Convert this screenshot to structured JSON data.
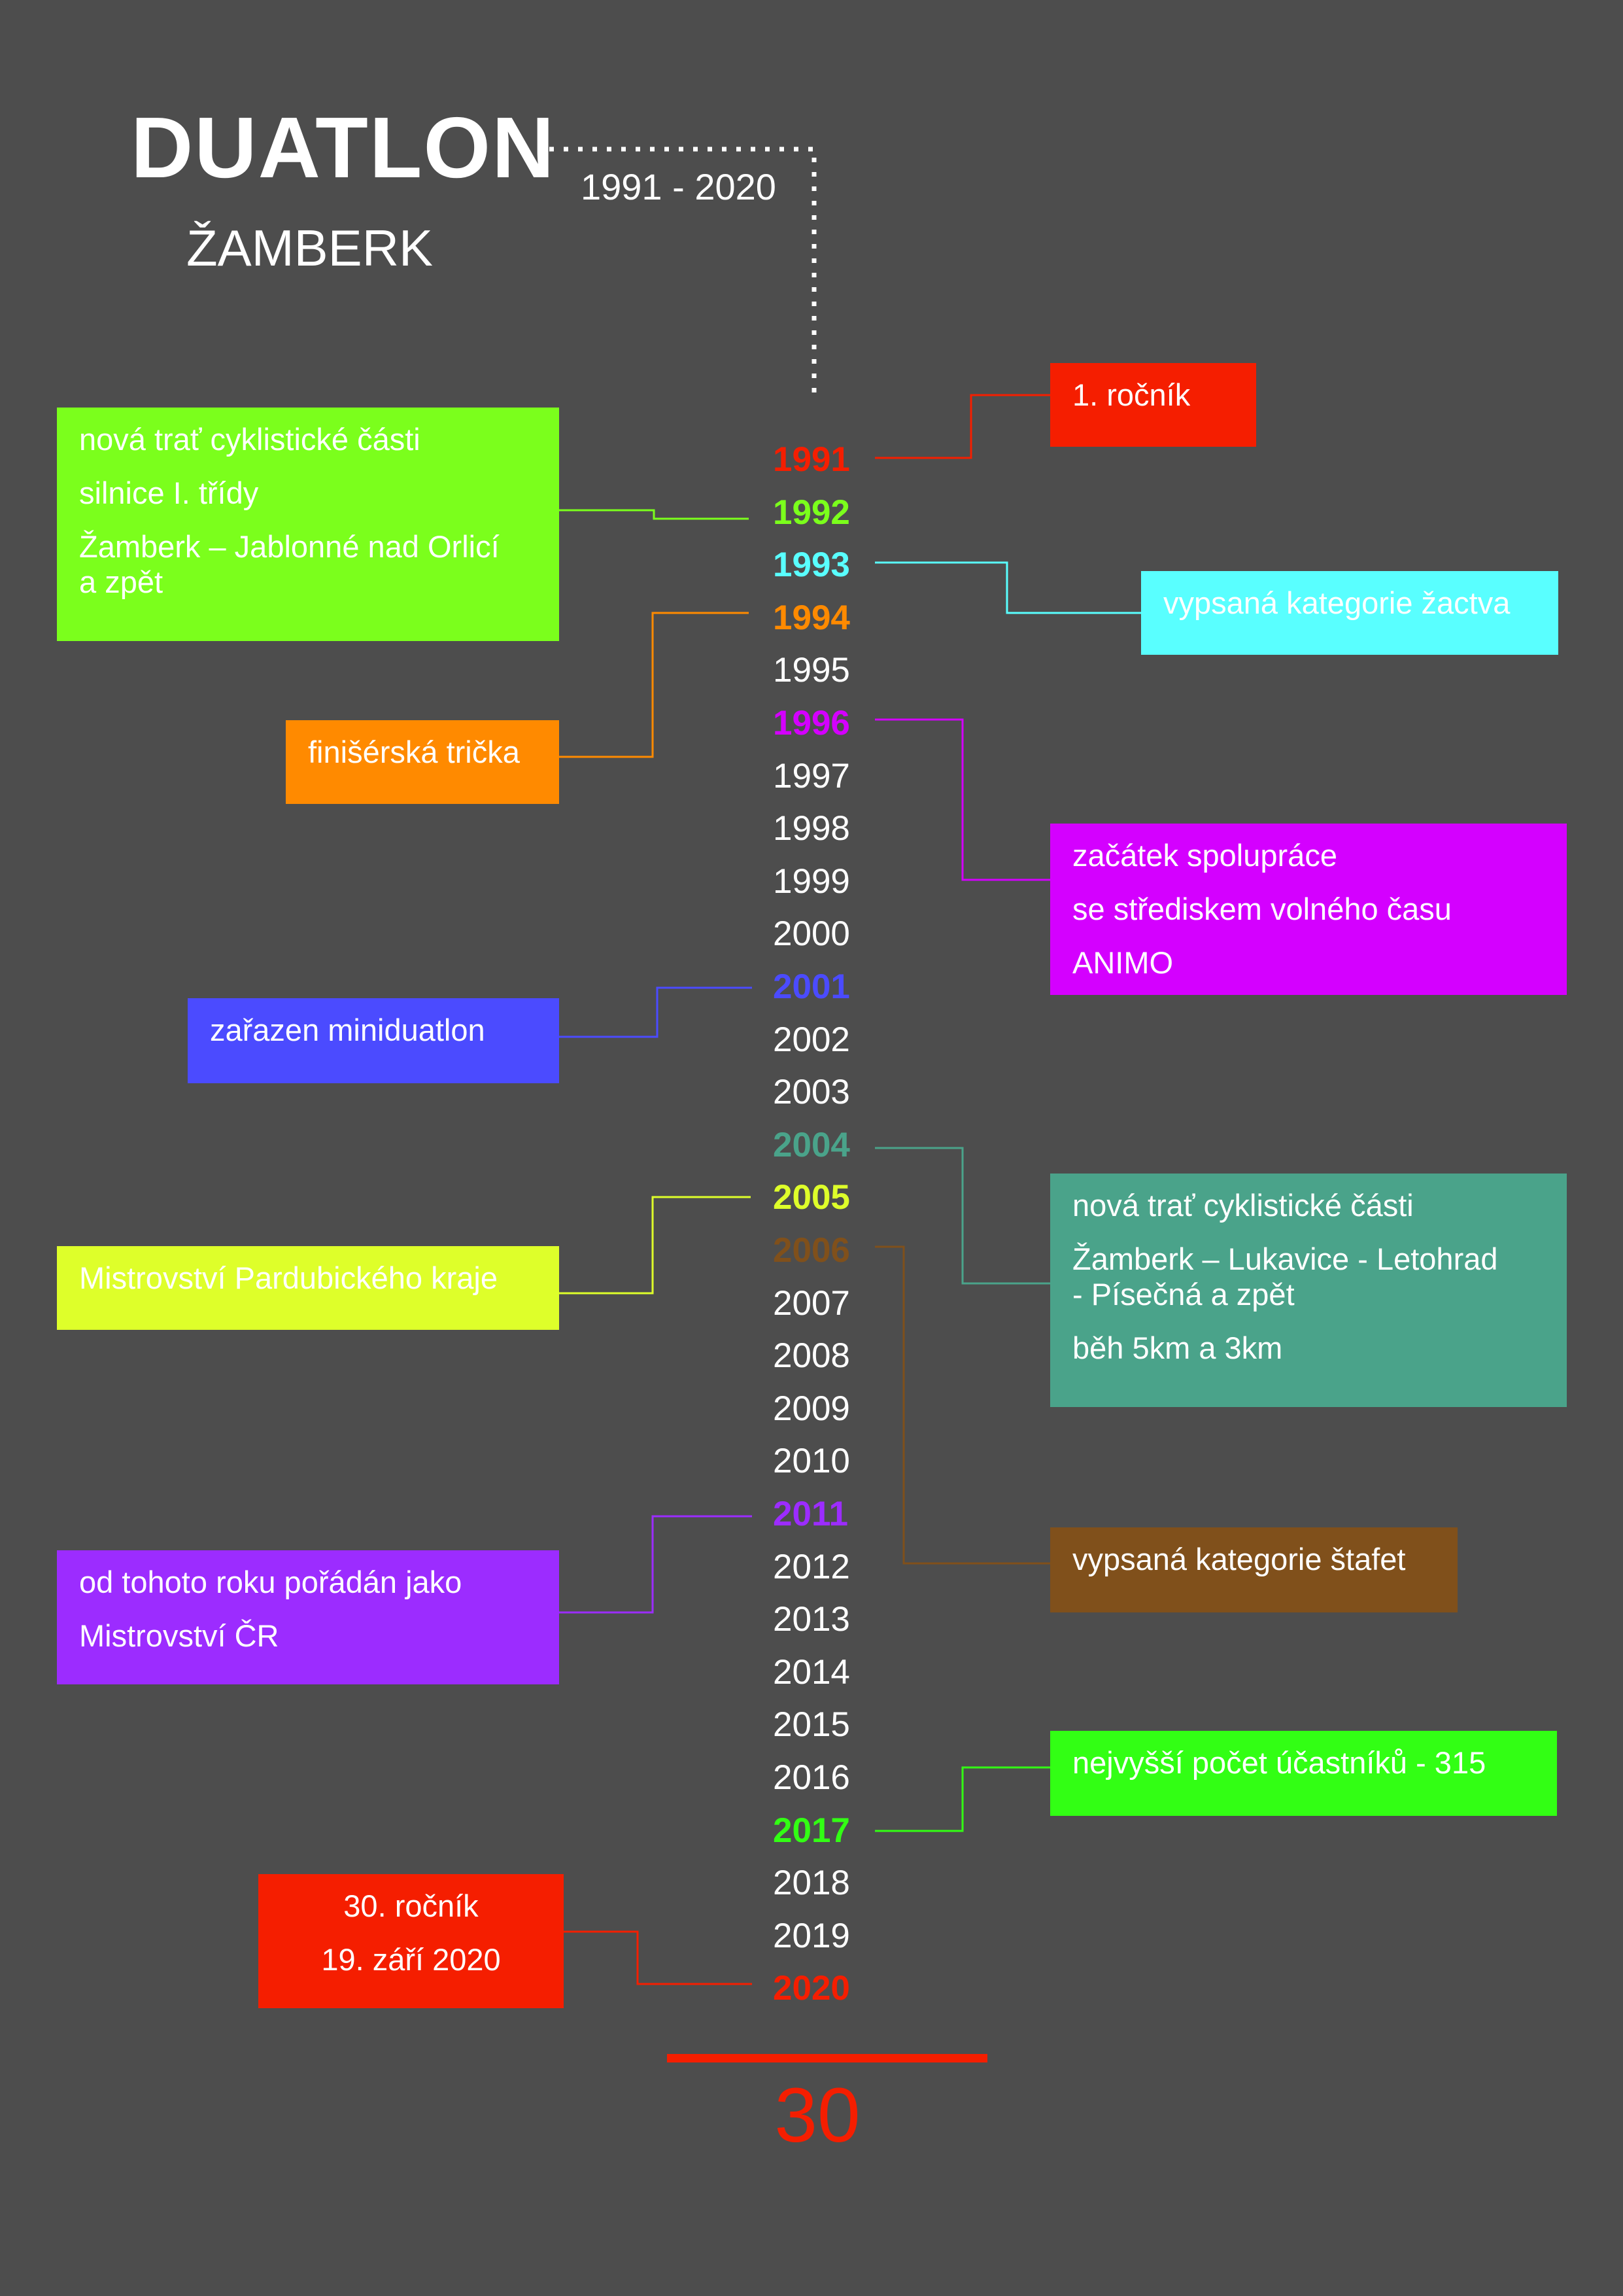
{
  "header": {
    "title": "DUATLON",
    "subtitle": "ŽAMBERK",
    "range": "1991 - 2020"
  },
  "timeline": {
    "years": [
      {
        "label": "1991",
        "color": "#f51e00",
        "highlight": true
      },
      {
        "label": "1992",
        "color": "#7bff1c",
        "highlight": true
      },
      {
        "label": "1993",
        "color": "#59ffff",
        "highlight": true
      },
      {
        "label": "1994",
        "color": "#ff8a00",
        "highlight": true
      },
      {
        "label": "1995",
        "color": "#ffffff",
        "highlight": false
      },
      {
        "label": "1996",
        "color": "#d400ff",
        "highlight": true
      },
      {
        "label": "1997",
        "color": "#ffffff",
        "highlight": false
      },
      {
        "label": "1998",
        "color": "#ffffff",
        "highlight": false
      },
      {
        "label": "1999",
        "color": "#ffffff",
        "highlight": false
      },
      {
        "label": "2000",
        "color": "#ffffff",
        "highlight": false
      },
      {
        "label": "2001",
        "color": "#4b4bff",
        "highlight": true
      },
      {
        "label": "2002",
        "color": "#ffffff",
        "highlight": false
      },
      {
        "label": "2003",
        "color": "#ffffff",
        "highlight": false
      },
      {
        "label": "2004",
        "color": "#4aa38a",
        "highlight": true
      },
      {
        "label": "2005",
        "color": "#deff2a",
        "highlight": true
      },
      {
        "label": "2006",
        "color": "#80501b",
        "highlight": true
      },
      {
        "label": "2007",
        "color": "#ffffff",
        "highlight": false
      },
      {
        "label": "2008",
        "color": "#ffffff",
        "highlight": false
      },
      {
        "label": "2009",
        "color": "#ffffff",
        "highlight": false
      },
      {
        "label": "2010",
        "color": "#ffffff",
        "highlight": false
      },
      {
        "label": "2011",
        "color": "#9c2cff",
        "highlight": true
      },
      {
        "label": "2012",
        "color": "#ffffff",
        "highlight": false
      },
      {
        "label": "2013",
        "color": "#ffffff",
        "highlight": false
      },
      {
        "label": "2014",
        "color": "#ffffff",
        "highlight": false
      },
      {
        "label": "2015",
        "color": "#ffffff",
        "highlight": false
      },
      {
        "label": "2016",
        "color": "#ffffff",
        "highlight": false
      },
      {
        "label": "2017",
        "color": "#32ff14",
        "highlight": true
      },
      {
        "label": "2018",
        "color": "#ffffff",
        "highlight": false
      },
      {
        "label": "2019",
        "color": "#ffffff",
        "highlight": false
      },
      {
        "label": "2020",
        "color": "#f51e00",
        "highlight": true
      }
    ]
  },
  "notes": [
    {
      "year": "1991",
      "lines": [
        "1. ročník"
      ],
      "color": "#f51e00"
    },
    {
      "year": "1992",
      "lines": [
        "nová trať cyklistické části",
        "silnice I. třídy",
        "Žamberk – Jablonné nad Orlicí",
        "a zpět"
      ],
      "color": "#7bff1c"
    },
    {
      "year": "1993",
      "lines": [
        "vypsaná kategorie žactva"
      ],
      "color": "#59ffff"
    },
    {
      "year": "1994",
      "lines": [
        "finišérská trička"
      ],
      "color": "#ff8a00"
    },
    {
      "year": "1996",
      "lines": [
        "začátek spolupráce",
        "se střediskem volného času",
        "ANIMO"
      ],
      "color": "#d400ff"
    },
    {
      "year": "2001",
      "lines": [
        "zařazen miniduatlon"
      ],
      "color": "#4b4bff"
    },
    {
      "year": "2004",
      "lines": [
        "nová trať cyklistické části",
        "Žamberk – Lukavice - Letohrad",
        "- Písečná a zpět",
        "běh 5km a 3km"
      ],
      "color": "#4aa38a"
    },
    {
      "year": "2005",
      "lines": [
        "Mistrovství Pardubického kraje"
      ],
      "color": "#deff2a"
    },
    {
      "year": "2006",
      "lines": [
        "vypsaná kategorie štafet"
      ],
      "color": "#80501b"
    },
    {
      "year": "2011",
      "lines": [
        "od tohoto roku pořádán jako",
        "Mistrovství ČR"
      ],
      "color": "#9c2cff"
    },
    {
      "year": "2017",
      "lines": [
        "nejvyšší počet účastníků - 315"
      ],
      "color": "#32ff14"
    },
    {
      "year": "2020",
      "lines": [
        "30. ročník",
        "19. září 2020"
      ],
      "color": "#f51e00"
    }
  ],
  "total": "30"
}
